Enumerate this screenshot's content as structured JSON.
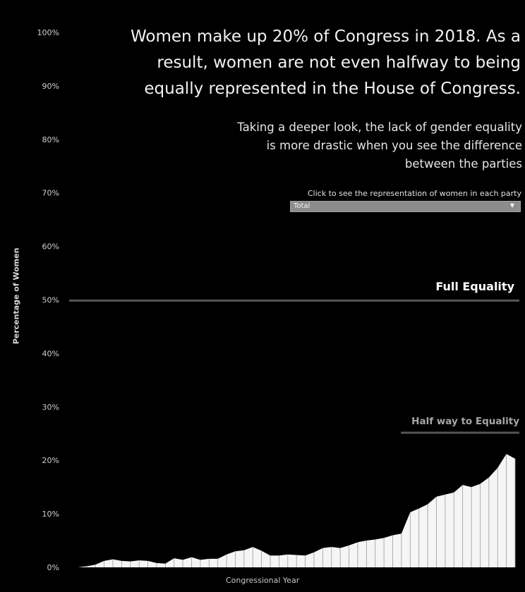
{
  "header": {
    "title": "Women make up 20% of Congress in 2018. As a result, women are not  even halfway to being equally represented in the House of Congress.",
    "subtitle": "Taking a deeper look, the lack of gender equality is more drastic when you see the difference between the parties"
  },
  "filter": {
    "label": "Click to see the representation of women in each party",
    "selected": "Total"
  },
  "colors": {
    "background": "#000000",
    "area_fill": "#f5f5f5",
    "full_equality_line": "#555555",
    "half_equality_line": "#555555",
    "half_equality_text": "#a6a6a6"
  },
  "chart_data": {
    "type": "area",
    "title": "",
    "xlabel": "Congressional Year",
    "ylabel": "Percentage of Women",
    "ylim": [
      0,
      100
    ],
    "yticks": [
      "0%",
      "10%",
      "20%",
      "30%",
      "40%",
      "50%",
      "60%",
      "70%",
      "80%",
      "90%",
      "100%"
    ],
    "grid": false,
    "series": [
      {
        "name": "Total",
        "values": [
          0.0,
          0.0,
          0.2,
          0.5,
          1.2,
          1.5,
          1.2,
          1.1,
          1.3,
          1.2,
          0.8,
          0.7,
          1.7,
          1.4,
          1.9,
          1.4,
          1.6,
          1.6,
          2.4,
          3.0,
          3.2,
          3.8,
          3.1,
          2.2,
          2.2,
          2.4,
          2.3,
          2.2,
          2.8,
          3.6,
          3.8,
          3.6,
          4.1,
          4.7,
          5.0,
          5.2,
          5.5,
          6.0,
          6.3,
          10.3,
          11.0,
          11.8,
          13.2,
          13.6,
          14.0,
          15.4,
          15.0,
          15.6,
          16.8,
          18.6,
          21.2,
          20.3
        ]
      }
    ],
    "reference_lines": [
      {
        "label": "Full Equality",
        "value": 50
      },
      {
        "label": "Half way to Equality",
        "value": 25
      }
    ]
  }
}
